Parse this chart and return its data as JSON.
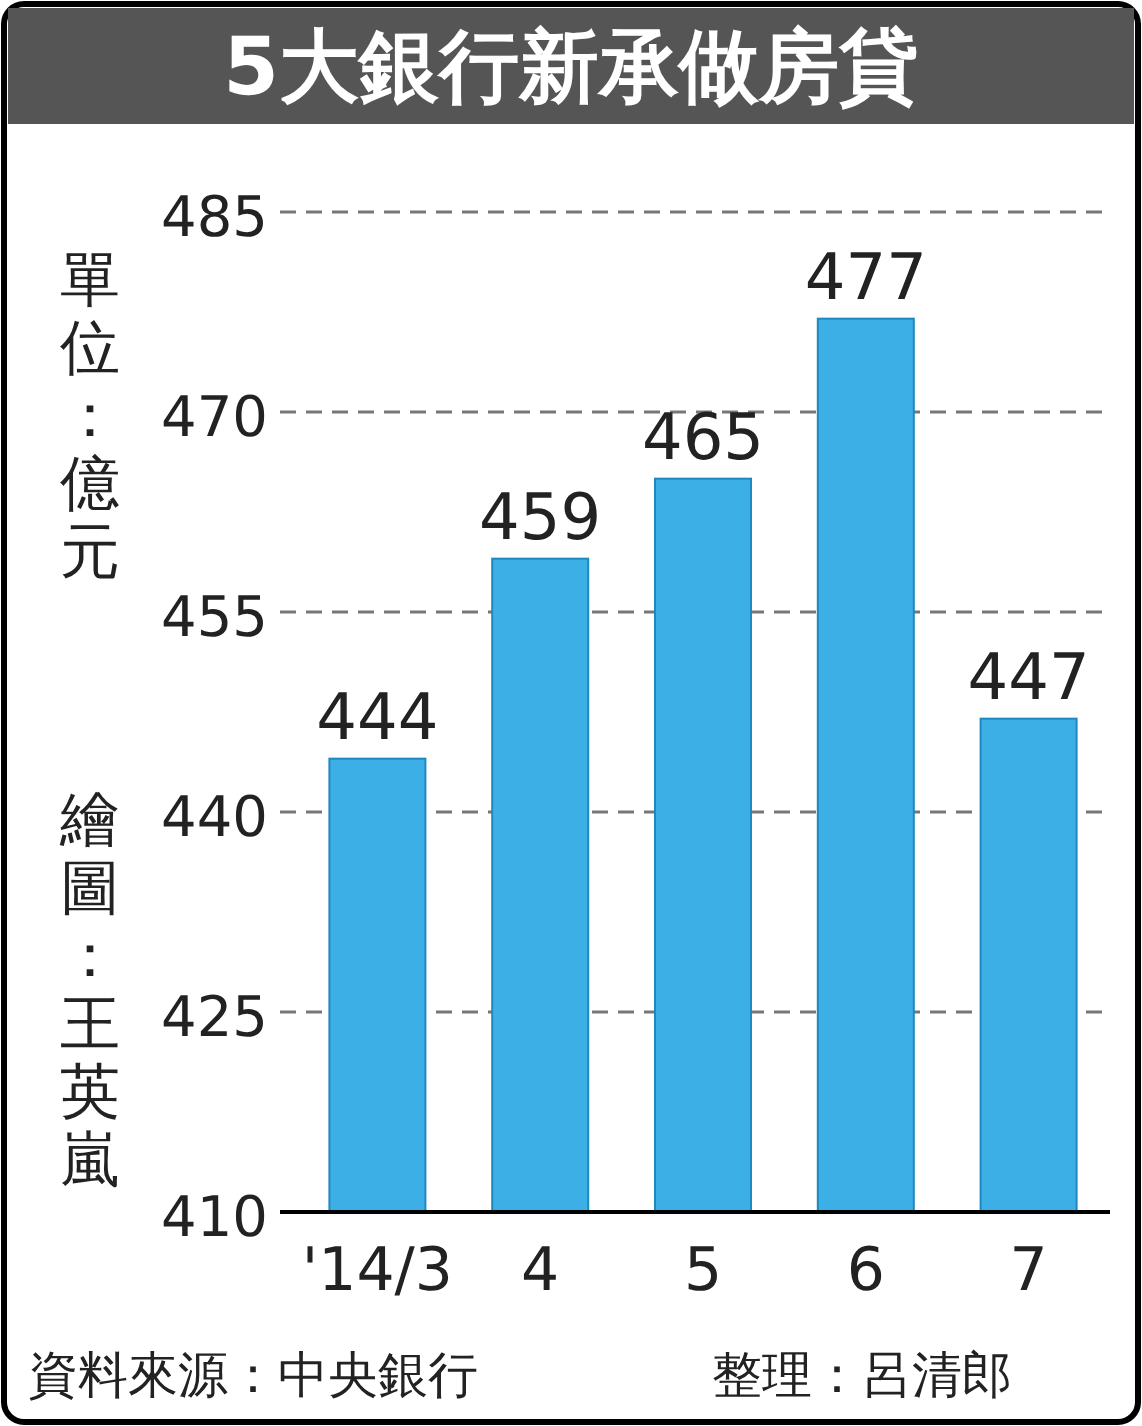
{
  "chart_data": {
    "type": "bar",
    "title": "5大銀行新承做房貸",
    "ylabel": "單位：億元",
    "categories": [
      "'14/3",
      "4",
      "5",
      "6",
      "7"
    ],
    "values": [
      444,
      459,
      465,
      477,
      447
    ],
    "color": "#3cb0e6",
    "ylim": [
      410,
      485
    ],
    "yticks": [
      410,
      425,
      440,
      455,
      470,
      485
    ],
    "grid": "y",
    "data_labels": true,
    "annotations": [
      "繪圖：王英嵐",
      "資料來源：中央銀行",
      "整理：呂清郎"
    ]
  }
}
